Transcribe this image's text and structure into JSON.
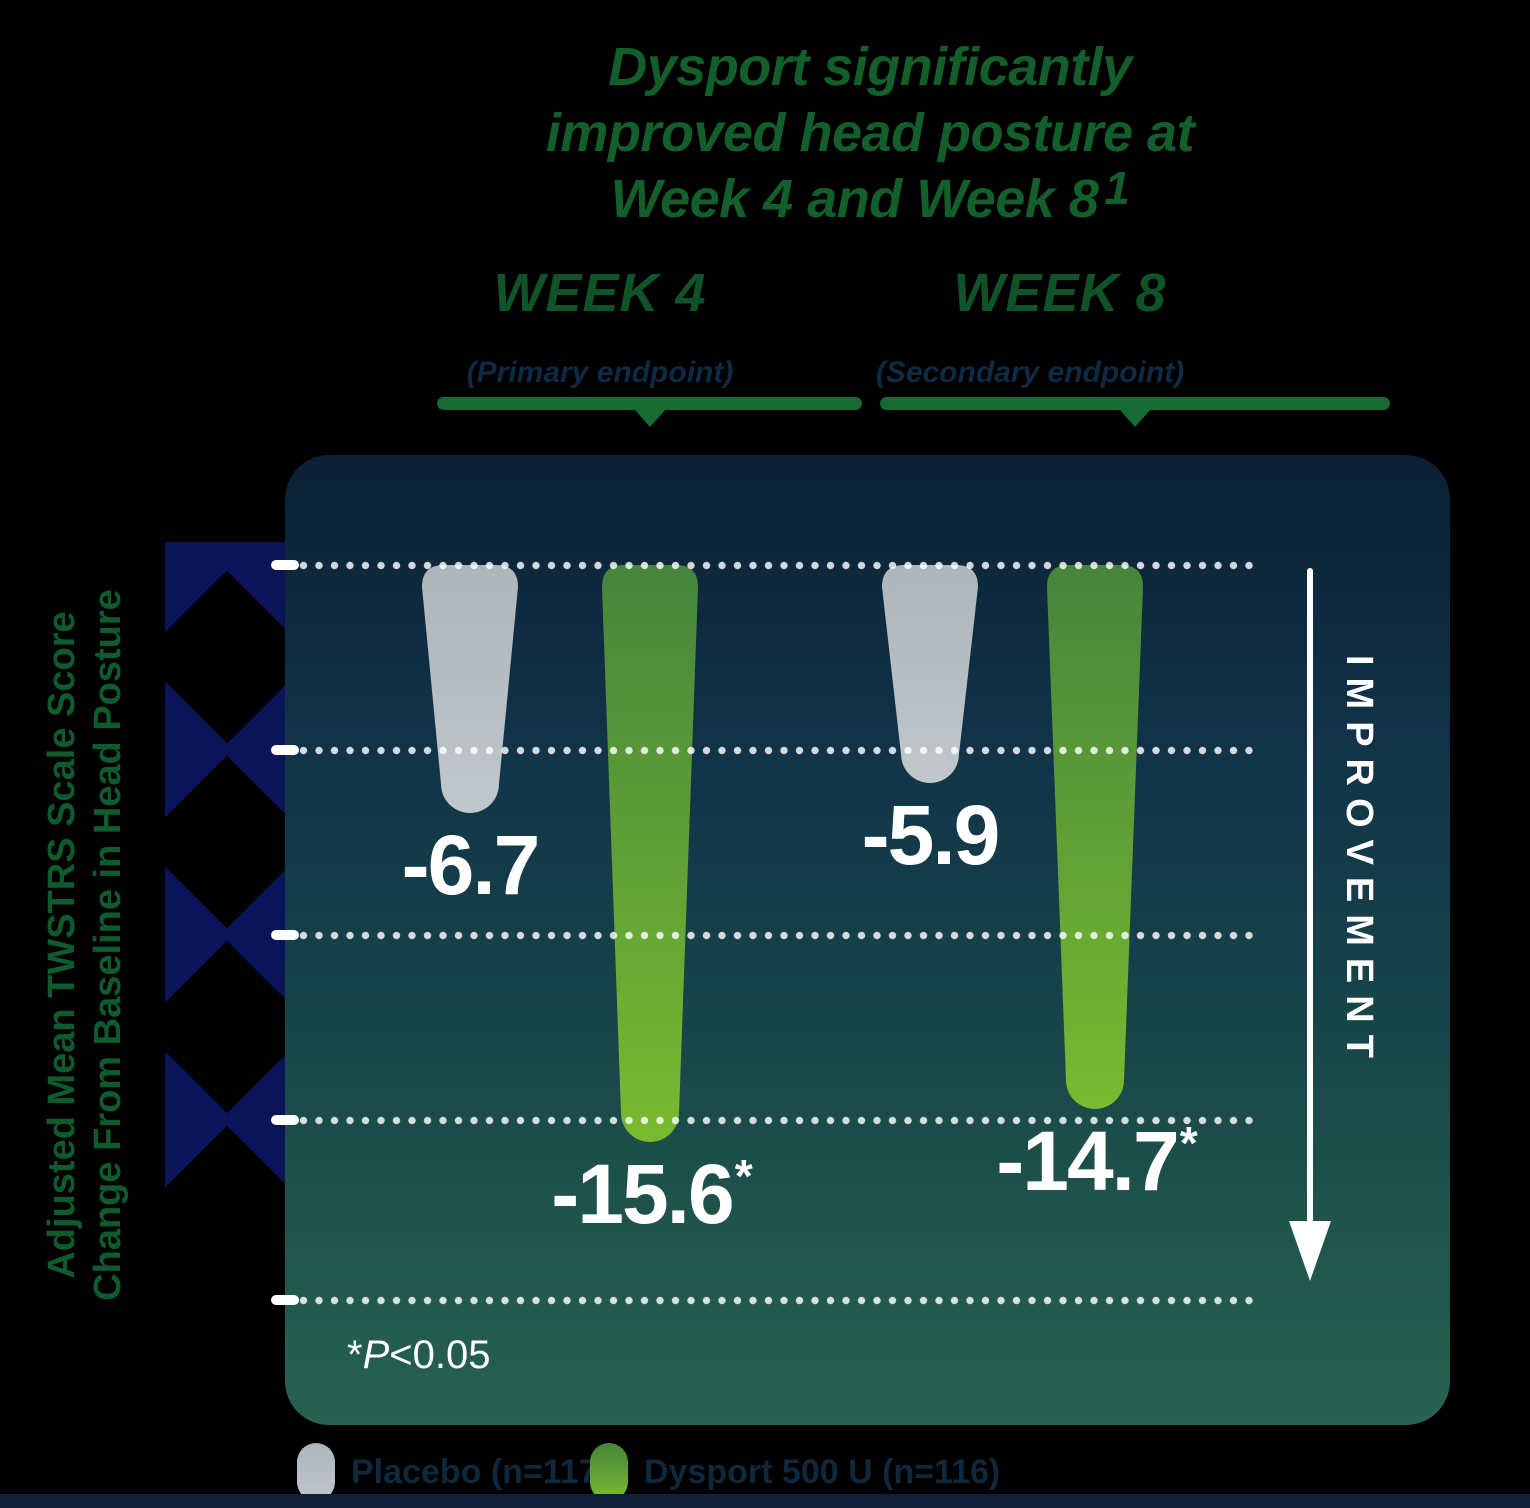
{
  "page": {
    "background": "#000000"
  },
  "title": {
    "lines": [
      "Dysport significantly",
      "improved head posture at",
      "Week 4 and Week 8"
    ],
    "reference_mark": "1",
    "color": "#135F2C"
  },
  "week_columns": [
    {
      "label": "WEEK 4",
      "sublabel": "(Primary endpoint)"
    },
    {
      "label": "WEEK 8",
      "sublabel": "(Secondary endpoint)"
    }
  ],
  "y_axis": {
    "label_line1": "Adjusted Mean TWSTRS Scale Score",
    "label_line2": "Change From Baseline in Head Posture"
  },
  "improvement_arrow_label": "IMPROVEMENT",
  "footnote": {
    "asterisk": "*",
    "stat": "P",
    "comparison": "<0.05"
  },
  "legend": [
    {
      "swatch": "placebo-gray",
      "label": "Placebo (n=117)"
    },
    {
      "swatch": "dysport-green",
      "label": "Dysport 500 U (n=116)"
    }
  ],
  "chart_data": {
    "type": "bar",
    "orientation": "vertical, bars descend from 0 line (downward = improvement)",
    "categories": [
      "Week 4",
      "Week 8"
    ],
    "series": [
      {
        "name": "Placebo",
        "values": [
          -6.7,
          -5.9
        ],
        "significant": [
          false,
          false
        ],
        "color_top": "#AEB5BB",
        "color_bottom": "#C0C6CA"
      },
      {
        "name": "Dysport 500 U",
        "values": [
          -15.6,
          -14.7
        ],
        "significant": [
          true,
          true
        ],
        "color_top": "#47853C",
        "color_bottom": "#79BA30"
      }
    ],
    "value_labels": [
      "-6.7",
      "-15.6*",
      "-5.9",
      "-14.7*"
    ],
    "title": "Dysport significantly improved head posture at Week 4 and Week 8",
    "ylabel": "Adjusted Mean TWSTRS Scale Score Change From Baseline in Head Posture",
    "ylim": [
      0,
      -20
    ],
    "gridline_values": [
      0,
      -5,
      -10,
      -15,
      -20
    ],
    "grid_style": "dotted white horizontal lines",
    "annotation": "*P<0.05",
    "legend_position": "bottom",
    "panel_gradient": [
      "#0B2033",
      "#113349",
      "#174449",
      "#276252"
    ]
  }
}
